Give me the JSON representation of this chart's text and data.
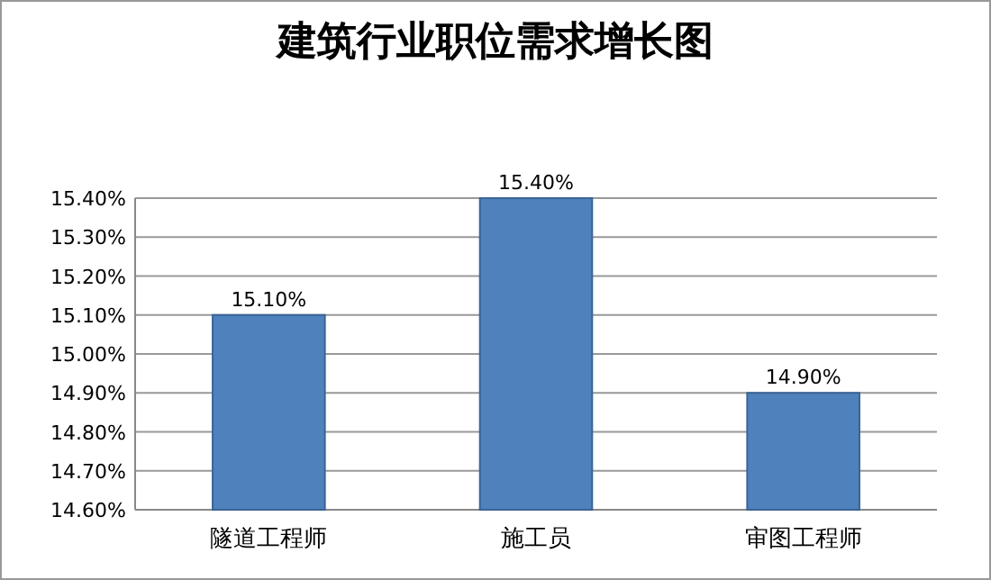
{
  "chart_data": {
    "type": "bar",
    "title": "建筑行业职位需求增长图",
    "categories": [
      "隧道工程师",
      "施工员",
      "审图工程师"
    ],
    "values": [
      15.1,
      15.4,
      14.9
    ],
    "value_labels": [
      "15.10%",
      "15.40%",
      "14.90%"
    ],
    "color": "#4f81bd",
    "ylim": [
      14.6,
      15.4
    ],
    "yticks": [
      {
        "value": 14.6,
        "label": "14.60%"
      },
      {
        "value": 14.7,
        "label": "14.70%"
      },
      {
        "value": 14.8,
        "label": "14.80%"
      },
      {
        "value": 14.9,
        "label": "14.90%"
      },
      {
        "value": 15.0,
        "label": "15.00%"
      },
      {
        "value": 15.1,
        "label": "15.10%"
      },
      {
        "value": 15.2,
        "label": "15.20%"
      },
      {
        "value": 15.3,
        "label": "15.30%"
      },
      {
        "value": 15.4,
        "label": "15.40%"
      }
    ],
    "grid": "y"
  }
}
